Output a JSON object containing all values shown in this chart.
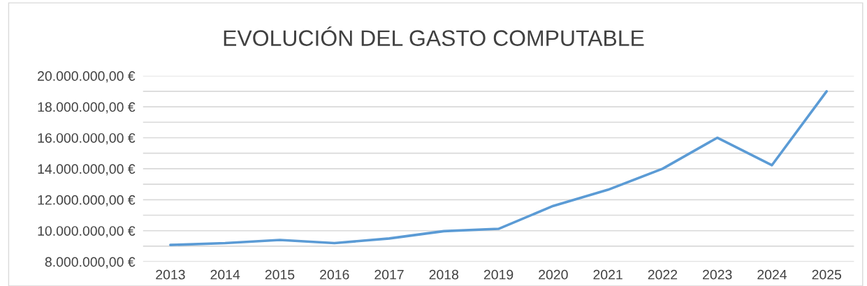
{
  "chart_data": {
    "type": "line",
    "title": "EVOLUCIÓN DEL GASTO COMPUTABLE",
    "categories": [
      "2013",
      "2014",
      "2015",
      "2016",
      "2017",
      "2018",
      "2019",
      "2020",
      "2021",
      "2022",
      "2023",
      "2024",
      "2025"
    ],
    "series": [
      {
        "color": "#5b9bd5",
        "values": [
          9080000,
          9200000,
          9400000,
          9200000,
          9500000,
          9970000,
          10120000,
          11600000,
          12640000,
          14000000,
          16000000,
          14230000,
          19000000
        ]
      }
    ],
    "ylim": [
      8000000,
      20000000
    ],
    "yticks": [
      {
        "value": 8000000,
        "label": "8.000.000,00 €"
      },
      {
        "value": 9000000,
        "label": null
      },
      {
        "value": 10000000,
        "label": "10.000.000,00 €"
      },
      {
        "value": 11000000,
        "label": null
      },
      {
        "value": 12000000,
        "label": "12.000.000,00 €"
      },
      {
        "value": 13000000,
        "label": null
      },
      {
        "value": 14000000,
        "label": "14.000.000,00 €"
      },
      {
        "value": 15000000,
        "label": null
      },
      {
        "value": 16000000,
        "label": "16.000.000,00 €"
      },
      {
        "value": 17000000,
        "label": null
      },
      {
        "value": 18000000,
        "label": "18.000.000,00 €"
      },
      {
        "value": 19000000,
        "label": null
      },
      {
        "value": 20000000,
        "label": "20.000.000,00 €"
      }
    ],
    "grid": "y",
    "legend": false,
    "marker": "none",
    "line_style": "solid"
  }
}
